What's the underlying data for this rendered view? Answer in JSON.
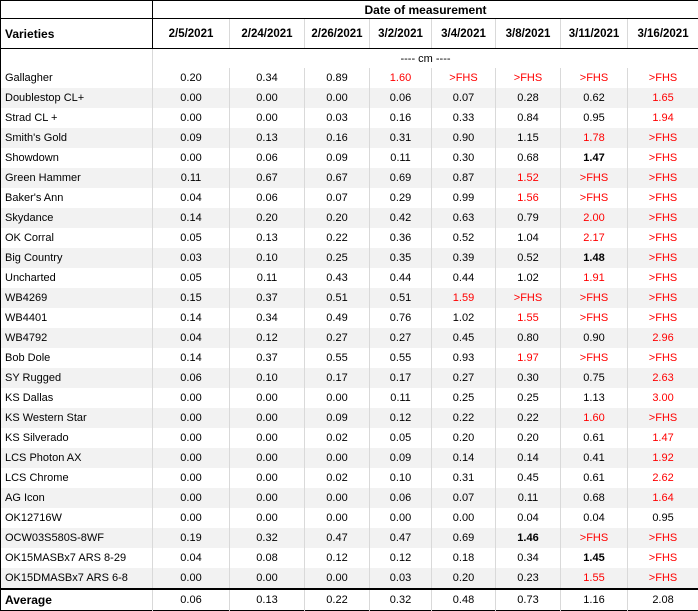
{
  "chart_data": {
    "type": "table",
    "title": "Date of measurement",
    "row_header": "Varieties",
    "units_label": "---- cm ----",
    "columns": [
      "2/5/2021",
      "2/24/2021",
      "2/26/2021",
      "3/2/2021",
      "3/4/2021",
      "3/8/2021",
      "3/11/2021",
      "3/16/2021"
    ],
    "rows": [
      {
        "name": "Gallagher",
        "values": [
          "0.20",
          "0.34",
          "0.89",
          "1.60",
          ">FHS",
          ">FHS",
          ">FHS",
          ">FHS"
        ],
        "flags": [
          "",
          "",
          "",
          "red",
          "red",
          "red",
          "red",
          "red"
        ]
      },
      {
        "name": "Doublestop CL+",
        "values": [
          "0.00",
          "0.00",
          "0.00",
          "0.06",
          "0.07",
          "0.28",
          "0.62",
          "1.65"
        ],
        "flags": [
          "",
          "",
          "",
          "",
          "",
          "",
          "",
          "red"
        ]
      },
      {
        "name": "Strad CL +",
        "values": [
          "0.00",
          "0.00",
          "0.03",
          "0.16",
          "0.33",
          "0.84",
          "0.95",
          "1.94"
        ],
        "flags": [
          "",
          "",
          "",
          "",
          "",
          "",
          "",
          "red"
        ]
      },
      {
        "name": "Smith's Gold",
        "values": [
          "0.09",
          "0.13",
          "0.16",
          "0.31",
          "0.90",
          "1.15",
          "1.78",
          ">FHS"
        ],
        "flags": [
          "",
          "",
          "",
          "",
          "",
          "",
          "red",
          "red"
        ]
      },
      {
        "name": "Showdown",
        "values": [
          "0.00",
          "0.06",
          "0.09",
          "0.11",
          "0.30",
          "0.68",
          "1.47",
          ">FHS"
        ],
        "flags": [
          "",
          "",
          "",
          "",
          "",
          "",
          "bold",
          "red"
        ]
      },
      {
        "name": "Green Hammer",
        "values": [
          "0.11",
          "0.67",
          "0.67",
          "0.69",
          "0.87",
          "1.52",
          ">FHS",
          ">FHS"
        ],
        "flags": [
          "",
          "",
          "",
          "",
          "",
          "red",
          "red",
          "red"
        ]
      },
      {
        "name": "Baker's Ann",
        "values": [
          "0.04",
          "0.06",
          "0.07",
          "0.29",
          "0.99",
          "1.56",
          ">FHS",
          ">FHS"
        ],
        "flags": [
          "",
          "",
          "",
          "",
          "",
          "red",
          "red",
          "red"
        ]
      },
      {
        "name": "Skydance",
        "values": [
          "0.14",
          "0.20",
          "0.20",
          "0.42",
          "0.63",
          "0.79",
          "2.00",
          ">FHS"
        ],
        "flags": [
          "",
          "",
          "",
          "",
          "",
          "",
          "red",
          "red"
        ]
      },
      {
        "name": "OK Corral",
        "values": [
          "0.05",
          "0.13",
          "0.22",
          "0.36",
          "0.52",
          "1.04",
          "2.17",
          ">FHS"
        ],
        "flags": [
          "",
          "",
          "",
          "",
          "",
          "",
          "red",
          "red"
        ]
      },
      {
        "name": "Big Country",
        "values": [
          "0.03",
          "0.10",
          "0.25",
          "0.35",
          "0.39",
          "0.52",
          "1.48",
          ">FHS"
        ],
        "flags": [
          "",
          "",
          "",
          "",
          "",
          "",
          "bold",
          "red"
        ]
      },
      {
        "name": "Uncharted",
        "values": [
          "0.05",
          "0.11",
          "0.43",
          "0.44",
          "0.44",
          "1.02",
          "1.91",
          ">FHS"
        ],
        "flags": [
          "",
          "",
          "",
          "",
          "",
          "",
          "red",
          "red"
        ]
      },
      {
        "name": "WB4269",
        "values": [
          "0.15",
          "0.37",
          "0.51",
          "0.51",
          "1.59",
          ">FHS",
          ">FHS",
          ">FHS"
        ],
        "flags": [
          "",
          "",
          "",
          "",
          "red",
          "red",
          "red",
          "red"
        ]
      },
      {
        "name": "WB4401",
        "values": [
          "0.14",
          "0.34",
          "0.49",
          "0.76",
          "1.02",
          "1.55",
          ">FHS",
          ">FHS"
        ],
        "flags": [
          "",
          "",
          "",
          "",
          "",
          "red",
          "red",
          "red"
        ]
      },
      {
        "name": "WB4792",
        "values": [
          "0.04",
          "0.12",
          "0.27",
          "0.27",
          "0.45",
          "0.80",
          "0.90",
          "2.96"
        ],
        "flags": [
          "",
          "",
          "",
          "",
          "",
          "",
          "",
          "red"
        ]
      },
      {
        "name": "Bob Dole",
        "values": [
          "0.14",
          "0.37",
          "0.55",
          "0.55",
          "0.93",
          "1.97",
          ">FHS",
          ">FHS"
        ],
        "flags": [
          "",
          "",
          "",
          "",
          "",
          "red",
          "red",
          "red"
        ]
      },
      {
        "name": "SY Rugged",
        "values": [
          "0.06",
          "0.10",
          "0.17",
          "0.17",
          "0.27",
          "0.30",
          "0.75",
          "2.63"
        ],
        "flags": [
          "",
          "",
          "",
          "",
          "",
          "",
          "",
          "red"
        ]
      },
      {
        "name": "KS Dallas",
        "values": [
          "0.00",
          "0.00",
          "0.00",
          "0.11",
          "0.25",
          "0.25",
          "1.13",
          "3.00"
        ],
        "flags": [
          "",
          "",
          "",
          "",
          "",
          "",
          "",
          "red"
        ]
      },
      {
        "name": "KS Western Star",
        "values": [
          "0.00",
          "0.00",
          "0.09",
          "0.12",
          "0.22",
          "0.22",
          "1.60",
          ">FHS"
        ],
        "flags": [
          "",
          "",
          "",
          "",
          "",
          "",
          "red",
          "red"
        ]
      },
      {
        "name": "KS Silverado",
        "values": [
          "0.00",
          "0.00",
          "0.02",
          "0.05",
          "0.20",
          "0.20",
          "0.61",
          "1.47"
        ],
        "flags": [
          "",
          "",
          "",
          "",
          "",
          "",
          "",
          "red"
        ]
      },
      {
        "name": "LCS Photon AX",
        "values": [
          "0.00",
          "0.00",
          "0.00",
          "0.09",
          "0.14",
          "0.14",
          "0.41",
          "1.92"
        ],
        "flags": [
          "",
          "",
          "",
          "",
          "",
          "",
          "",
          "red"
        ]
      },
      {
        "name": "LCS Chrome",
        "values": [
          "0.00",
          "0.00",
          "0.02",
          "0.10",
          "0.31",
          "0.45",
          "0.61",
          "2.62"
        ],
        "flags": [
          "",
          "",
          "",
          "",
          "",
          "",
          "",
          "red"
        ]
      },
      {
        "name": "AG Icon",
        "values": [
          "0.00",
          "0.00",
          "0.00",
          "0.06",
          "0.07",
          "0.11",
          "0.68",
          "1.64"
        ],
        "flags": [
          "",
          "",
          "",
          "",
          "",
          "",
          "",
          "red"
        ]
      },
      {
        "name": "OK12716W",
        "values": [
          "0.00",
          "0.00",
          "0.00",
          "0.00",
          "0.00",
          "0.04",
          "0.04",
          "0.95"
        ],
        "flags": [
          "",
          "",
          "",
          "",
          "",
          "",
          "",
          ""
        ]
      },
      {
        "name": "OCW03S580S-8WF",
        "values": [
          "0.19",
          "0.32",
          "0.47",
          "0.47",
          "0.69",
          "1.46",
          ">FHS",
          ">FHS"
        ],
        "flags": [
          "",
          "",
          "",
          "",
          "",
          "bold",
          "red",
          "red"
        ]
      },
      {
        "name": "OK15MASBx7 ARS 8-29",
        "values": [
          "0.04",
          "0.08",
          "0.12",
          "0.12",
          "0.18",
          "0.34",
          "1.45",
          ">FHS"
        ],
        "flags": [
          "",
          "",
          "",
          "",
          "",
          "",
          "bold",
          "red"
        ]
      },
      {
        "name": "OK15DMASBx7 ARS 6-8",
        "values": [
          "0.00",
          "0.00",
          "0.00",
          "0.03",
          "0.20",
          "0.23",
          "1.55",
          ">FHS"
        ],
        "flags": [
          "",
          "",
          "",
          "",
          "",
          "",
          "red",
          "red"
        ]
      },
      {
        "name": "Average",
        "values": [
          "0.06",
          "0.13",
          "0.22",
          "0.32",
          "0.48",
          "0.73",
          "1.16",
          "2.08"
        ],
        "flags": [
          "",
          "",
          "",
          "",
          "",
          "",
          "",
          ""
        ],
        "is_summary": true
      }
    ],
    "colors": {
      "flag_red": "#ff0000",
      "band_gray": "#f2f2f2",
      "gridline_gray": "#d9d9d9",
      "border_black": "#000000"
    },
    "layout": {
      "banding": "alternate rows shaded starting with second data row",
      "legend_position": "none",
      "grid": "vertical separators only"
    }
  }
}
